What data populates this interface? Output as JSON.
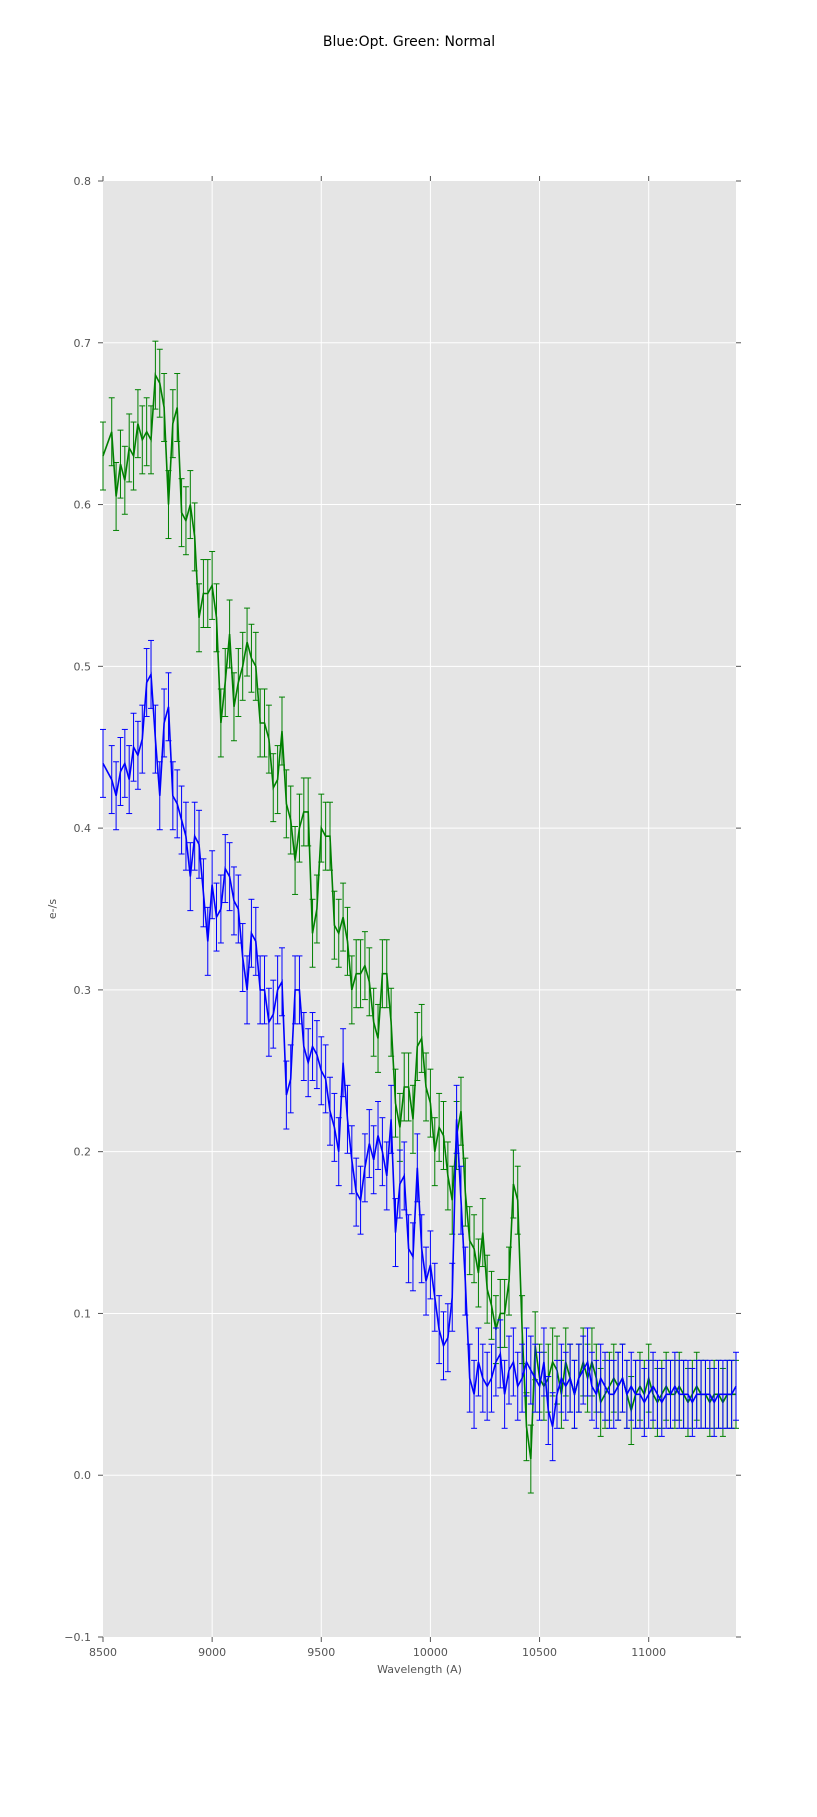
{
  "chart_data": {
    "type": "line",
    "title": "Blue:Opt. Green: Normal",
    "xlabel": "Wavelength (A)",
    "ylabel": "e-/s",
    "xlim": [
      8500,
      11400
    ],
    "ylim": [
      -0.1,
      0.8
    ],
    "xticks": [
      8500,
      9000,
      9500,
      10000,
      10500,
      11000
    ],
    "xtick_labels": [
      "8500",
      "9000",
      "9500",
      "10000",
      "10500",
      "11000"
    ],
    "yticks": [
      -0.1,
      0.0,
      0.1,
      0.2,
      0.3,
      0.4,
      0.5,
      0.6,
      0.7,
      0.8
    ],
    "ytick_labels": [
      "−0.1",
      "0.0",
      "0.1",
      "0.2",
      "0.3",
      "0.4",
      "0.5",
      "0.6",
      "0.7",
      "0.8"
    ],
    "grid": true,
    "background_color": "#e5e5e5",
    "grid_color": "#ffffff",
    "series": [
      {
        "color": "#008000",
        "x": [
          8500,
          8540,
          8560,
          8580,
          8600,
          8620,
          8640,
          8660,
          8680,
          8700,
          8720,
          8740,
          8760,
          8780,
          8800,
          8820,
          8840,
          8860,
          8880,
          8900,
          8920,
          8940,
          8960,
          8980,
          9000,
          9020,
          9040,
          9060,
          9080,
          9100,
          9120,
          9140,
          9160,
          9180,
          9200,
          9220,
          9240,
          9260,
          9280,
          9300,
          9320,
          9340,
          9360,
          9380,
          9400,
          9420,
          9440,
          9460,
          9480,
          9500,
          9520,
          9540,
          9560,
          9580,
          9600,
          9620,
          9640,
          9660,
          9680,
          9700,
          9720,
          9740,
          9760,
          9780,
          9800,
          9820,
          9840,
          9860,
          9880,
          9900,
          9920,
          9940,
          9960,
          9980,
          10000,
          10020,
          10040,
          10060,
          10080,
          10100,
          10120,
          10140,
          10160,
          10180,
          10200,
          10220,
          10240,
          10260,
          10280,
          10300,
          10320,
          10340,
          10360,
          10380,
          10400,
          10420,
          10440,
          10460,
          10480,
          10500,
          10520,
          10540,
          10560,
          10580,
          10600,
          10620,
          10640,
          10660,
          10680,
          10700,
          10720,
          10740,
          10760,
          10780,
          10800,
          10820,
          10840,
          10860,
          10880,
          10900,
          10920,
          10940,
          10960,
          10980,
          11000,
          11020,
          11040,
          11060,
          11080,
          11100,
          11120,
          11140,
          11160,
          11180,
          11200,
          11220,
          11240,
          11260,
          11280,
          11300,
          11320,
          11340,
          11360,
          11380,
          11400
        ],
        "y": [
          0.63,
          0.645,
          0.605,
          0.625,
          0.615,
          0.635,
          0.63,
          0.65,
          0.64,
          0.645,
          0.64,
          0.68,
          0.675,
          0.66,
          0.6,
          0.65,
          0.66,
          0.595,
          0.59,
          0.6,
          0.58,
          0.53,
          0.545,
          0.545,
          0.55,
          0.53,
          0.465,
          0.49,
          0.52,
          0.475,
          0.49,
          0.5,
          0.515,
          0.505,
          0.5,
          0.465,
          0.465,
          0.455,
          0.425,
          0.43,
          0.46,
          0.415,
          0.405,
          0.38,
          0.4,
          0.41,
          0.41,
          0.335,
          0.35,
          0.4,
          0.395,
          0.395,
          0.34,
          0.335,
          0.345,
          0.33,
          0.3,
          0.31,
          0.31,
          0.315,
          0.305,
          0.28,
          0.27,
          0.31,
          0.31,
          0.28,
          0.23,
          0.215,
          0.24,
          0.24,
          0.22,
          0.265,
          0.27,
          0.24,
          0.23,
          0.2,
          0.215,
          0.21,
          0.185,
          0.17,
          0.21,
          0.225,
          0.175,
          0.145,
          0.14,
          0.125,
          0.15,
          0.115,
          0.105,
          0.09,
          0.1,
          0.1,
          0.12,
          0.18,
          0.17,
          0.09,
          0.03,
          0.01,
          0.08,
          0.06,
          0.055,
          0.06,
          0.07,
          0.065,
          0.05,
          0.07,
          0.06,
          0.05,
          0.06,
          0.07,
          0.06,
          0.07,
          0.06,
          0.045,
          0.05,
          0.055,
          0.06,
          0.055,
          0.06,
          0.05,
          0.04,
          0.05,
          0.055,
          0.05,
          0.06,
          0.05,
          0.045,
          0.05,
          0.055,
          0.05,
          0.05,
          0.055,
          0.05,
          0.045,
          0.05,
          0.055,
          0.05,
          0.05,
          0.045,
          0.05,
          0.05,
          0.045,
          0.05,
          0.05,
          0.05
        ],
        "err": 0.021
      },
      {
        "color": "#0000ff",
        "x": [
          8500,
          8540,
          8560,
          8580,
          8600,
          8620,
          8640,
          8660,
          8680,
          8700,
          8720,
          8740,
          8760,
          8780,
          8800,
          8820,
          8840,
          8860,
          8880,
          8900,
          8920,
          8940,
          8960,
          8980,
          9000,
          9020,
          9040,
          9060,
          9080,
          9100,
          9120,
          9140,
          9160,
          9180,
          9200,
          9220,
          9240,
          9260,
          9280,
          9300,
          9320,
          9340,
          9360,
          9380,
          9400,
          9420,
          9440,
          9460,
          9480,
          9500,
          9520,
          9540,
          9560,
          9580,
          9600,
          9620,
          9640,
          9660,
          9680,
          9700,
          9720,
          9740,
          9760,
          9780,
          9800,
          9820,
          9840,
          9860,
          9880,
          9900,
          9920,
          9940,
          9960,
          9980,
          10000,
          10020,
          10040,
          10060,
          10080,
          10100,
          10120,
          10140,
          10160,
          10180,
          10200,
          10220,
          10240,
          10260,
          10280,
          10300,
          10320,
          10340,
          10360,
          10380,
          10400,
          10420,
          10440,
          10460,
          10480,
          10500,
          10520,
          10540,
          10560,
          10580,
          10600,
          10620,
          10640,
          10660,
          10680,
          10700,
          10720,
          10740,
          10760,
          10780,
          10800,
          10820,
          10840,
          10860,
          10880,
          10900,
          10920,
          10940,
          10960,
          10980,
          11000,
          11020,
          11040,
          11060,
          11080,
          11100,
          11120,
          11140,
          11160,
          11180,
          11200,
          11220,
          11240,
          11260,
          11280,
          11300,
          11320,
          11340,
          11360,
          11380,
          11400
        ],
        "y": [
          0.44,
          0.43,
          0.42,
          0.435,
          0.44,
          0.43,
          0.45,
          0.445,
          0.455,
          0.49,
          0.495,
          0.455,
          0.42,
          0.465,
          0.475,
          0.42,
          0.415,
          0.405,
          0.395,
          0.37,
          0.395,
          0.39,
          0.36,
          0.33,
          0.365,
          0.345,
          0.35,
          0.375,
          0.37,
          0.355,
          0.35,
          0.32,
          0.3,
          0.335,
          0.33,
          0.3,
          0.3,
          0.28,
          0.285,
          0.3,
          0.305,
          0.235,
          0.245,
          0.3,
          0.3,
          0.265,
          0.255,
          0.265,
          0.26,
          0.25,
          0.245,
          0.225,
          0.215,
          0.2,
          0.255,
          0.22,
          0.195,
          0.175,
          0.17,
          0.19,
          0.205,
          0.195,
          0.21,
          0.2,
          0.185,
          0.22,
          0.15,
          0.18,
          0.185,
          0.14,
          0.135,
          0.19,
          0.14,
          0.12,
          0.13,
          0.11,
          0.09,
          0.08,
          0.085,
          0.11,
          0.22,
          0.17,
          0.12,
          0.06,
          0.05,
          0.07,
          0.06,
          0.055,
          0.06,
          0.07,
          0.075,
          0.05,
          0.065,
          0.07,
          0.055,
          0.06,
          0.07,
          0.065,
          0.06,
          0.055,
          0.07,
          0.04,
          0.03,
          0.05,
          0.06,
          0.055,
          0.06,
          0.05,
          0.06,
          0.065,
          0.07,
          0.055,
          0.05,
          0.06,
          0.055,
          0.05,
          0.05,
          0.055,
          0.06,
          0.05,
          0.055,
          0.05,
          0.05,
          0.045,
          0.05,
          0.055,
          0.05,
          0.045,
          0.05,
          0.05,
          0.055,
          0.05,
          0.05,
          0.05,
          0.045,
          0.05,
          0.05,
          0.05,
          0.05,
          0.045,
          0.05,
          0.05,
          0.05,
          0.05,
          0.055
        ],
        "err": 0.021
      }
    ]
  }
}
